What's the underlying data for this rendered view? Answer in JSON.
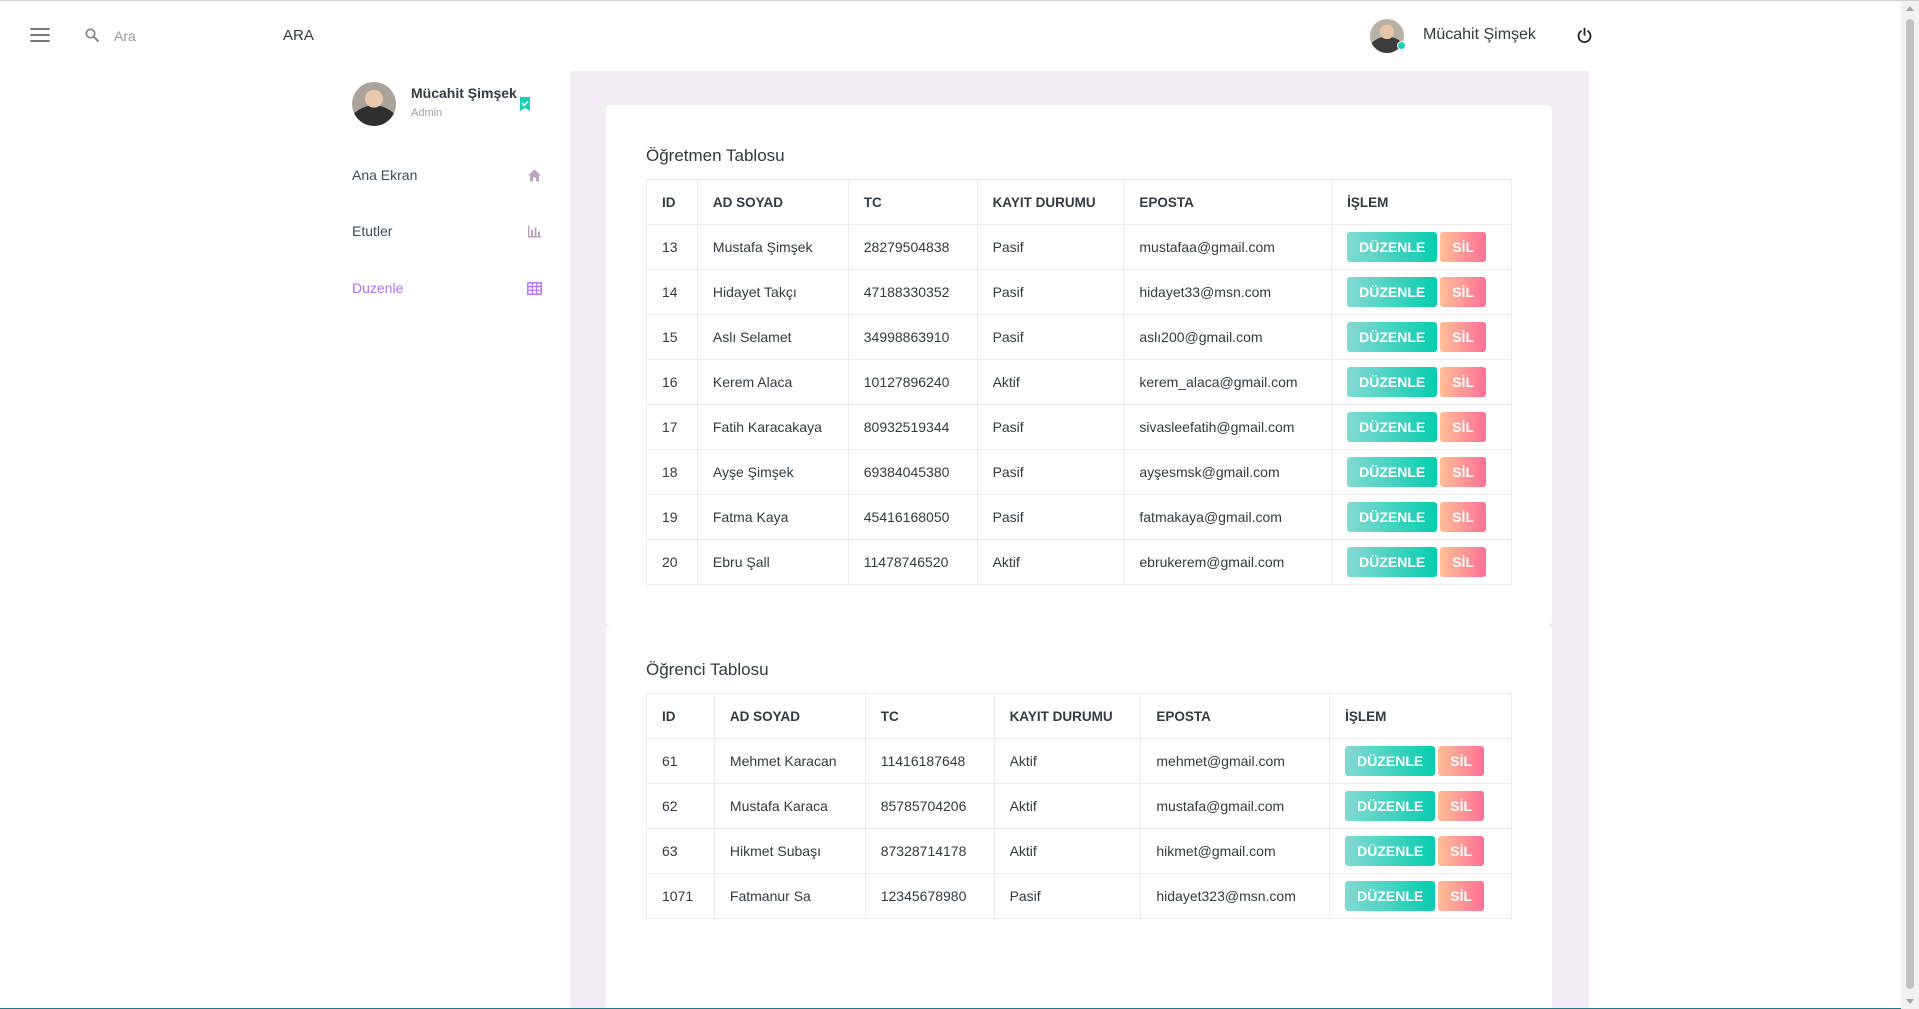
{
  "navbar": {
    "search_placeholder": "Ara",
    "search_button": "ARA",
    "username": "Mücahit Şimşek"
  },
  "sidebar": {
    "profile_name": "Mücahit Şimşek",
    "profile_role": "Admin",
    "items": [
      {
        "label": "Ana Ekran",
        "icon": "home-icon",
        "active": false
      },
      {
        "label": "Etutler",
        "icon": "chart-bar-icon",
        "active": false
      },
      {
        "label": "Duzenle",
        "icon": "table-icon",
        "active": true
      }
    ]
  },
  "colors": {
    "accent": "#b66dff",
    "edit_button": "#07cdae",
    "delete_button": "#fe7096",
    "content_bg": "#f2edf3"
  },
  "teachers": {
    "title": "Öğretmen Tablosu",
    "columns": [
      "ID",
      "AD SOYAD",
      "TC",
      "KAYIT DURUMU",
      "EPOSTA",
      "İŞLEM"
    ],
    "rows": [
      {
        "id": "13",
        "name": "Mustafa Şimşek",
        "tc": "28279504838",
        "status": "Pasif",
        "email": "mustafaa@gmail.com"
      },
      {
        "id": "14",
        "name": "Hidayet Takçı",
        "tc": "47188330352",
        "status": "Pasif",
        "email": "hidayet33@msn.com"
      },
      {
        "id": "15",
        "name": "Aslı Selamet",
        "tc": "34998863910",
        "status": "Pasif",
        "email": "aslı200@gmail.com"
      },
      {
        "id": "16",
        "name": "Kerem Alaca",
        "tc": "10127896240",
        "status": "Aktif",
        "email": "kerem_alaca@gmail.com"
      },
      {
        "id": "17",
        "name": "Fatih Karacakaya",
        "tc": "80932519344",
        "status": "Pasif",
        "email": "sivasleefatih@gmail.com"
      },
      {
        "id": "18",
        "name": "Ayşe Şimşek",
        "tc": "69384045380",
        "status": "Pasif",
        "email": "ayşesmsk@gmail.com"
      },
      {
        "id": "19",
        "name": "Fatma Kaya",
        "tc": "45416168050",
        "status": "Pasif",
        "email": "fatmakaya@gmail.com"
      },
      {
        "id": "20",
        "name": "Ebru Şall",
        "tc": "11478746520",
        "status": "Aktif",
        "email": "ebrukerem@gmail.com"
      }
    ]
  },
  "students": {
    "title": "Öğrenci Tablosu",
    "columns": [
      "ID",
      "AD SOYAD",
      "TC",
      "KAYIT DURUMU",
      "EPOSTA",
      "İŞLEM"
    ],
    "rows": [
      {
        "id": "61",
        "name": "Mehmet Karacan",
        "tc": "11416187648",
        "status": "Aktif",
        "email": "mehmet@gmail.com"
      },
      {
        "id": "62",
        "name": "Mustafa Karaca",
        "tc": "85785704206",
        "status": "Aktif",
        "email": "mustafa@gmail.com"
      },
      {
        "id": "63",
        "name": "Hikmet Subaşı",
        "tc": "87328714178",
        "status": "Aktif",
        "email": "hikmet@gmail.com"
      },
      {
        "id": "1071",
        "name": "Fatmanur Sa",
        "tc": "12345678980",
        "status": "Pasif",
        "email": "hidayet323@msn.com"
      }
    ]
  },
  "actions": {
    "edit_label": "DÜZENLE",
    "delete_label": "SİL"
  }
}
